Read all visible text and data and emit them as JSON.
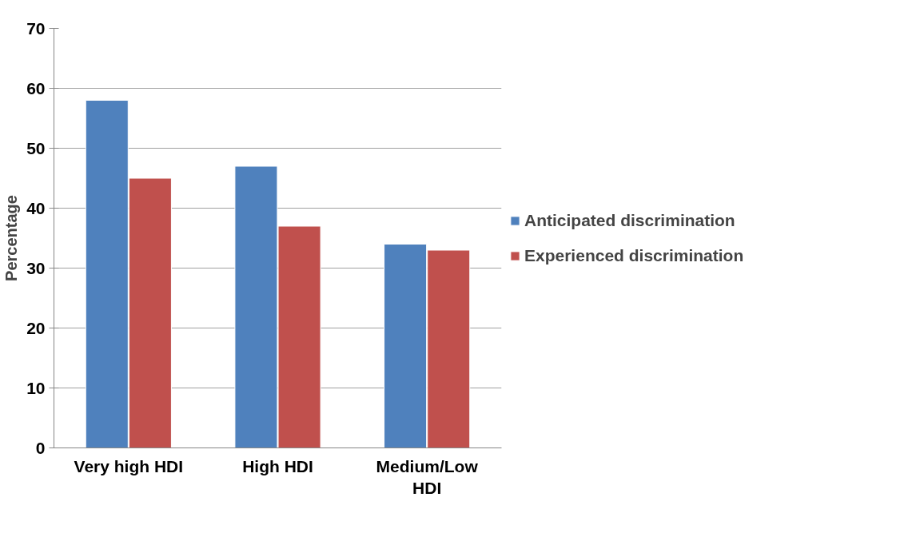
{
  "chart_data": {
    "type": "bar",
    "ylabel": "Percentage",
    "categories": [
      "Very high HDI",
      "High HDI",
      "Medium/Low HDI"
    ],
    "series": [
      {
        "name": "Anticipated discrimination",
        "color": "#4f81bd",
        "values": [
          58,
          47,
          34
        ]
      },
      {
        "name": "Experienced discrimination",
        "color": "#c0504d",
        "values": [
          45,
          37,
          33
        ]
      }
    ],
    "ylim": [
      0,
      70
    ],
    "yticks": [
      0,
      10,
      20,
      30,
      40,
      50,
      60,
      70
    ],
    "grid": "y",
    "legend": "right"
  }
}
